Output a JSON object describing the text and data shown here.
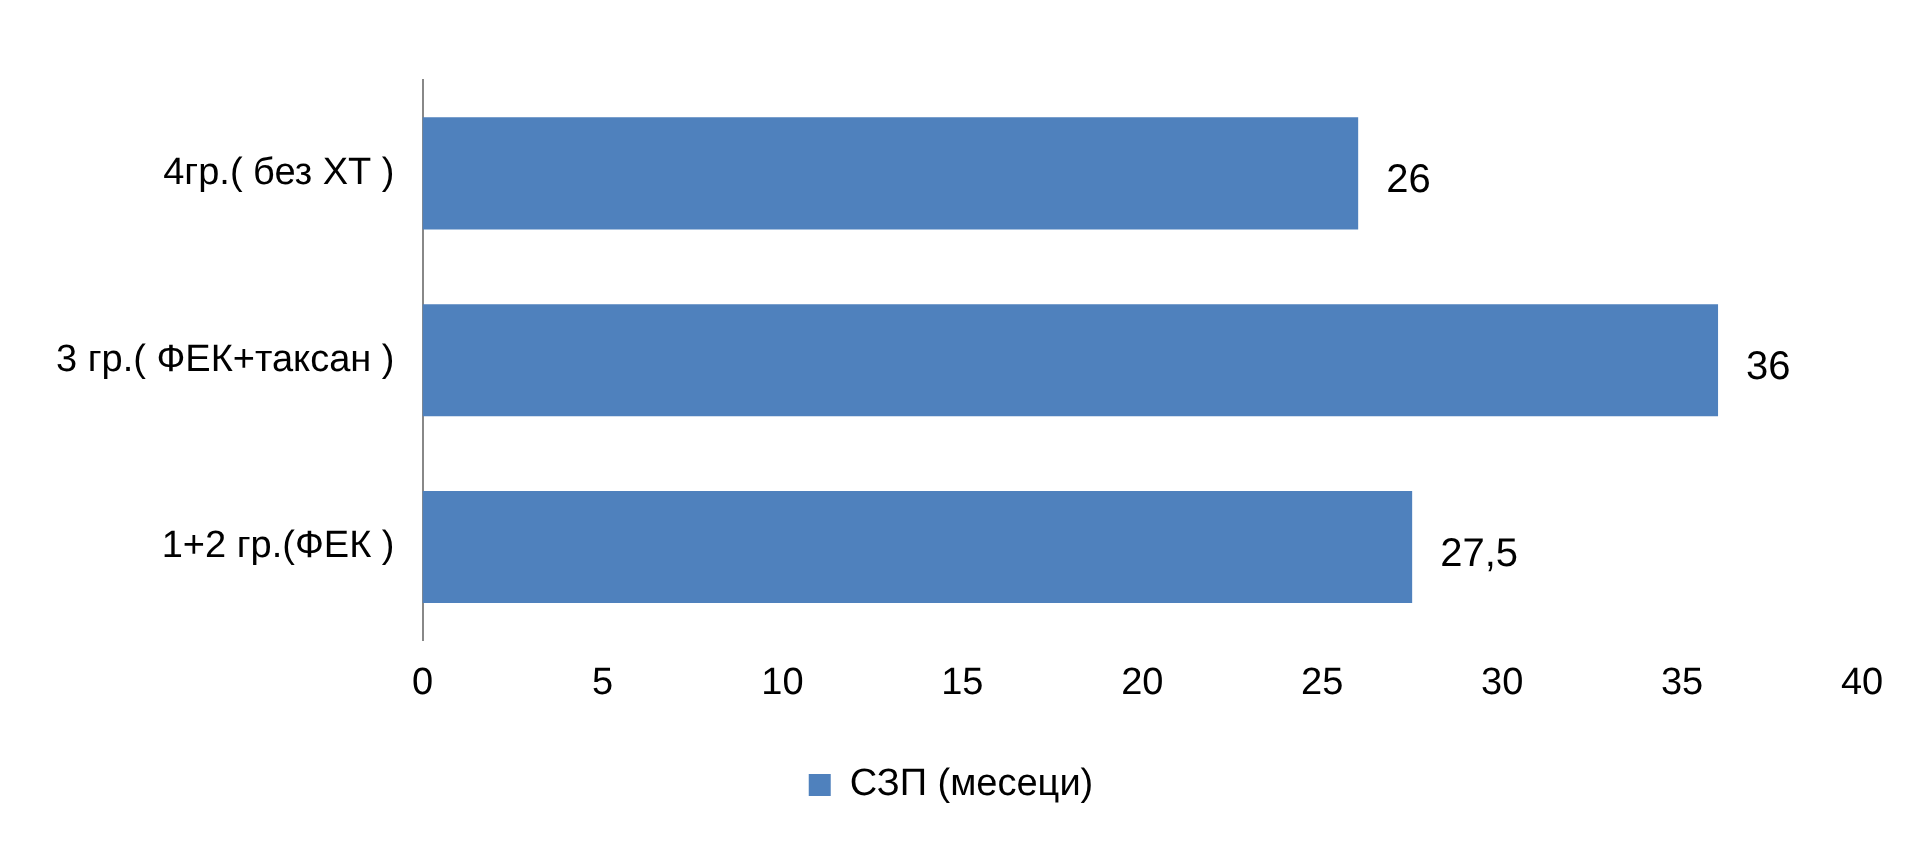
{
  "chart_data": {
    "type": "bar",
    "orientation": "horizontal",
    "categories": [
      "4гр.( без ХТ )",
      "3 гр.( ФЕК+таксан )",
      "1+2 гр.(ФЕК )"
    ],
    "series": [
      {
        "name": "СЗП (месеци)",
        "color": "#4f81bd",
        "values": [
          26,
          36,
          27.5
        ],
        "value_labels": [
          "26",
          "36",
          "27,5"
        ]
      }
    ],
    "xlim": [
      0,
      40
    ],
    "xticks": [
      0,
      5,
      10,
      15,
      20,
      25,
      30,
      35,
      40
    ],
    "grid": false,
    "legend": "bottom"
  }
}
